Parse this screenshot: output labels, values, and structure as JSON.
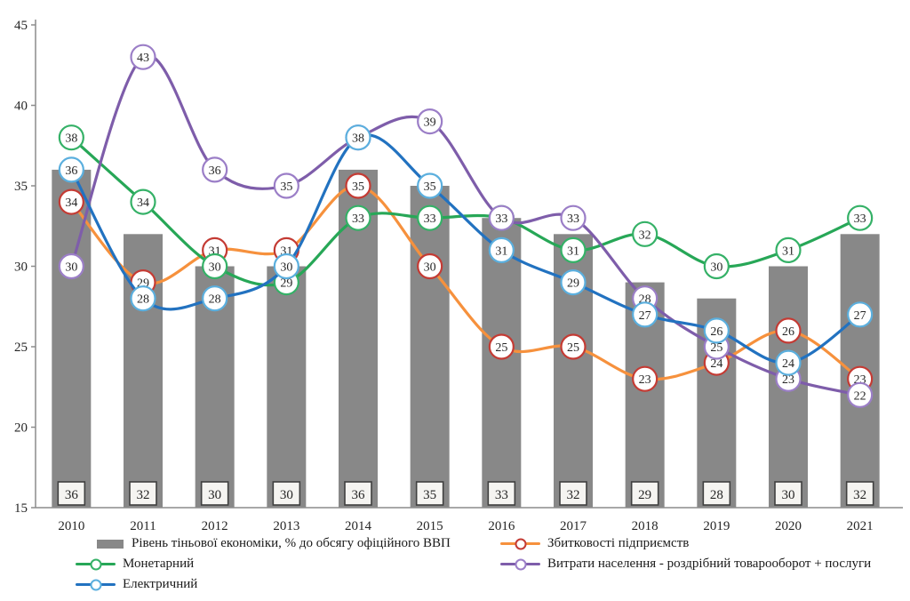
{
  "chart_data": {
    "type": "combo-bar-line",
    "categories": [
      "2010",
      "2011",
      "2012",
      "2013",
      "2014",
      "2015",
      "2016",
      "2017",
      "2018",
      "2019",
      "2020",
      "2021"
    ],
    "bar_series": {
      "name": "Рівень тіньової економіки, % до обсягу офіційного ВВП",
      "values": [
        36,
        32,
        30,
        30,
        36,
        35,
        33,
        32,
        29,
        28,
        30,
        32
      ]
    },
    "line_series": [
      {
        "name": "Збитковості підприємств",
        "values": [
          34,
          29,
          31,
          31,
          35,
          30,
          25,
          25,
          23,
          24,
          26,
          23
        ],
        "line_color": "#F6913D",
        "marker_ring_color": "#C43B34"
      },
      {
        "name": "Монетарний",
        "values": [
          38,
          34,
          30,
          29,
          33,
          33,
          33,
          31,
          32,
          30,
          31,
          33
        ],
        "line_color": "#27A757",
        "marker_ring_color": "#35B167"
      },
      {
        "name": "Витрати населення - роздрібний товарооборот + послуги",
        "values": [
          30,
          43,
          36,
          35,
          38,
          39,
          33,
          33,
          28,
          25,
          23,
          22
        ],
        "line_color": "#7E5DAA",
        "marker_ring_color": "#9B7EC7"
      },
      {
        "name": "Електричний",
        "values": [
          36,
          28,
          28,
          30,
          38,
          35,
          31,
          29,
          27,
          26,
          24,
          27
        ],
        "line_color": "#2272C0",
        "marker_ring_color": "#5BAFDE"
      }
    ],
    "ylim": [
      15,
      45
    ],
    "yticks": [
      15,
      20,
      25,
      30,
      35,
      40,
      45
    ],
    "grid": false,
    "legend_position": "bottom",
    "colors": {
      "bar": "#888888",
      "bar_label_box_fill": "#F5F4F1",
      "bar_label_box_border": "#3F3F3F",
      "axis": "#8C8C8C",
      "marker_fill": "#FFFFFF",
      "marker_text": "#1b1b1b"
    },
    "legend": {
      "columns": {
        "left": [
          {
            "swatch": "bar",
            "label": "Рівень тіньової економіки, % до обсягу офіційного ВВП"
          },
          {
            "swatch": "line-green",
            "label": "Монетарний"
          },
          {
            "swatch": "line-blue",
            "label": "Електричний"
          }
        ],
        "right": [
          {
            "swatch": "line-orange",
            "label": "Збитковості підприємств"
          },
          {
            "swatch": "line-purple",
            "label": "Витрати населення - роздрібний товарооборот + послуги"
          }
        ]
      }
    }
  }
}
